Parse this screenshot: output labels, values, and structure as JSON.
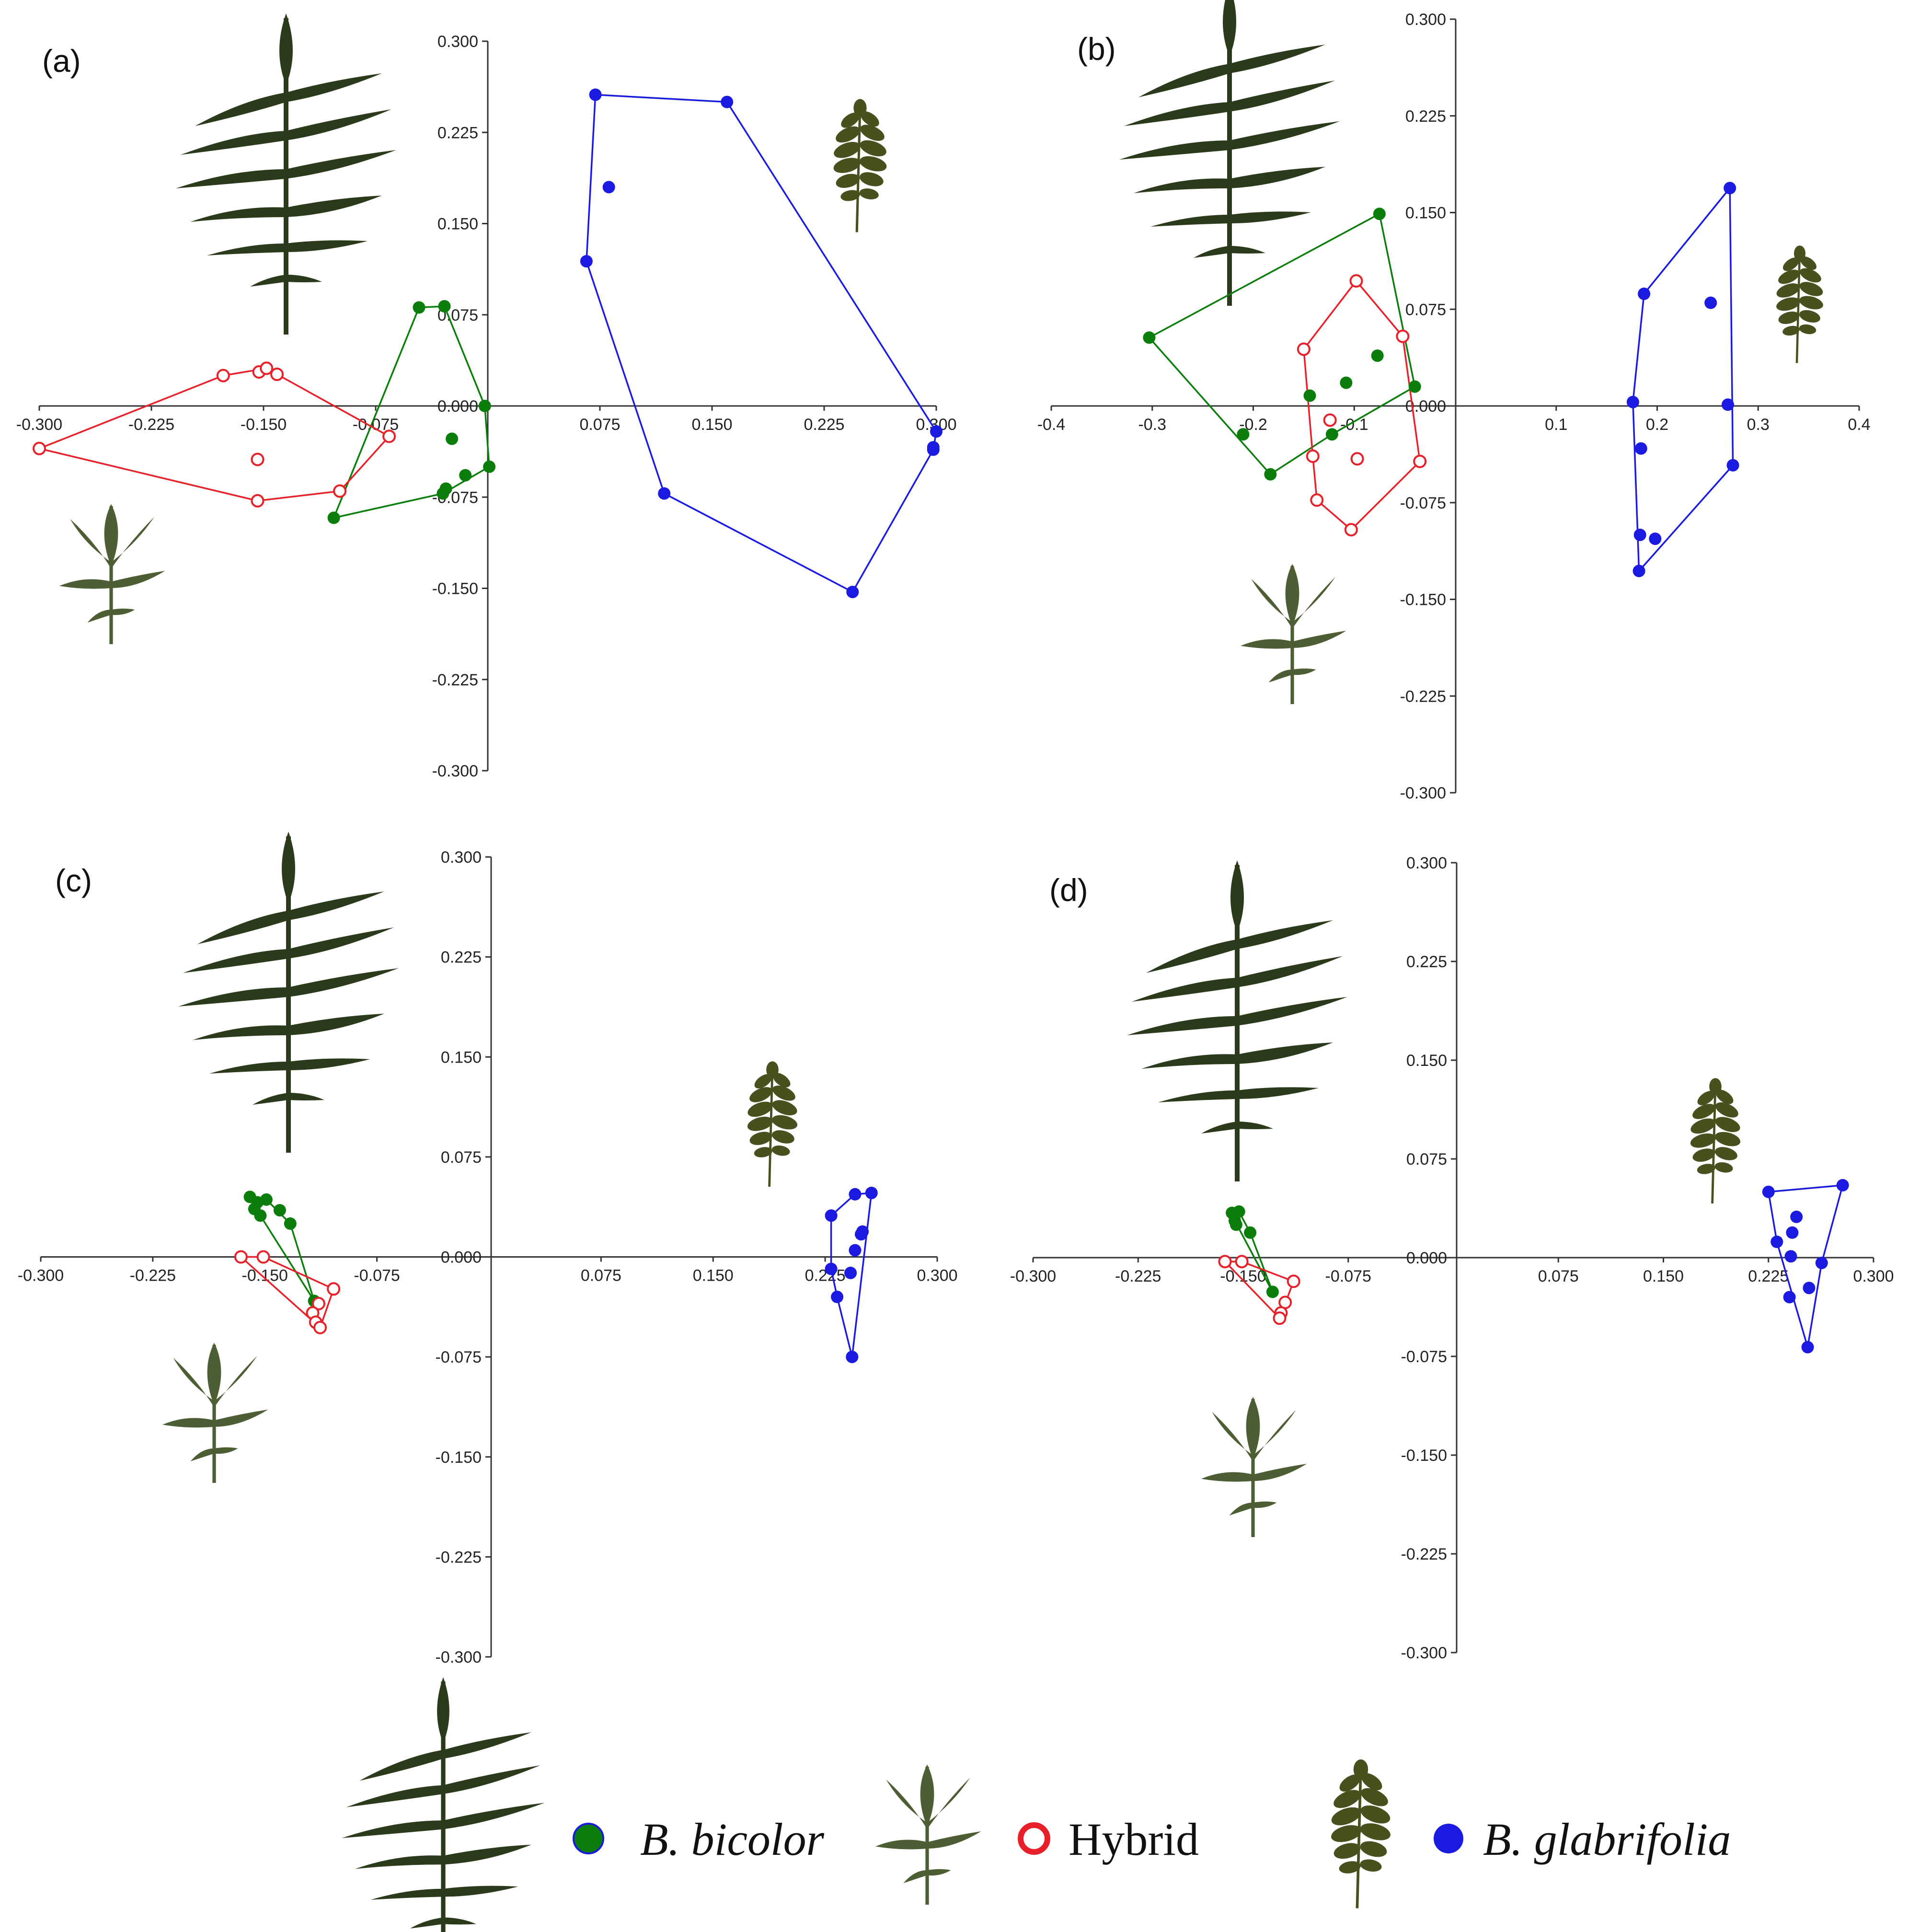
{
  "figure": {
    "colors": {
      "bicolor": "#0a7d0a",
      "hybrid": "#e8202a",
      "glabrifolia": "#1a1ae0",
      "axis": "#333333",
      "leaf_dark": "#2c3a1c",
      "leaf_mid": "#4e5e34",
      "leaf_olive": "#4a4f1e"
    },
    "legend": {
      "bicolor_label": "B. bicolor",
      "hybrid_label": "Hybrid",
      "glabrifolia_label": "B. glabrifolia",
      "bicolor_icon": "filled-circle-green",
      "hybrid_icon": "open-circle-red",
      "glabrifolia_icon": "filled-circle-blue",
      "bicolor_leaf_icon": "pinnate-leaf-icon",
      "hybrid_leaf_icon": "trifoliate-leaf-icon",
      "glabrifolia_leaf_icon": "small-pinnate-leaf-icon"
    }
  },
  "chart_data": [
    {
      "type": "scatter",
      "panel": "(a)",
      "title": "",
      "xlabel": "",
      "ylabel": "",
      "xlim": [
        -0.3,
        0.3
      ],
      "ylim": [
        -0.3,
        0.3
      ],
      "xticks": [
        "-0.300",
        "-0.225",
        "-0.150",
        "-0.075",
        "0.075",
        "0.150",
        "0.225",
        "0.300"
      ],
      "yticks": [
        "0.300",
        "0.225",
        "0.150",
        "0.075",
        "0.000",
        "-0.075",
        "-0.150",
        "-0.225",
        "-0.300"
      ],
      "series": [
        {
          "name": "B. bicolor",
          "marker": "filled",
          "color": "green",
          "points": [
            [
              -0.046,
              0.081
            ],
            [
              -0.029,
              0.082
            ],
            [
              -0.024,
              -0.027
            ],
            [
              -0.015,
              -0.057
            ],
            [
              -0.028,
              -0.068
            ],
            [
              -0.03,
              -0.072
            ],
            [
              -0.002,
              0.0
            ],
            [
              0.001,
              -0.05
            ],
            [
              -0.103,
              -0.092
            ]
          ],
          "hull": [
            [
              -0.046,
              0.081
            ],
            [
              -0.029,
              0.082
            ],
            [
              -0.002,
              0.0
            ],
            [
              0.001,
              -0.05
            ],
            [
              -0.03,
              -0.072
            ],
            [
              -0.103,
              -0.092
            ]
          ]
        },
        {
          "name": "Hybrid",
          "marker": "open",
          "color": "red",
          "points": [
            [
              -0.3,
              -0.035
            ],
            [
              -0.177,
              0.025
            ],
            [
              -0.153,
              0.028
            ],
            [
              -0.148,
              0.031
            ],
            [
              -0.141,
              0.026
            ],
            [
              -0.066,
              -0.025
            ],
            [
              -0.099,
              -0.07
            ],
            [
              -0.154,
              -0.078
            ],
            [
              -0.154,
              -0.044
            ]
          ],
          "hull": [
            [
              -0.3,
              -0.035
            ],
            [
              -0.177,
              0.025
            ],
            [
              -0.148,
              0.031
            ],
            [
              -0.141,
              0.026
            ],
            [
              -0.066,
              -0.025
            ],
            [
              -0.099,
              -0.07
            ],
            [
              -0.154,
              -0.078
            ]
          ]
        },
        {
          "name": "B. glabrifolia",
          "marker": "filled",
          "color": "blue",
          "points": [
            [
              0.072,
              0.256
            ],
            [
              0.081,
              0.18
            ],
            [
              0.066,
              0.119
            ],
            [
              0.16,
              0.25
            ],
            [
              0.118,
              -0.072
            ],
            [
              0.244,
              -0.153
            ],
            [
              0.3,
              -0.021
            ],
            [
              0.298,
              -0.034
            ],
            [
              0.298,
              -0.036
            ]
          ],
          "hull": [
            [
              0.072,
              0.256
            ],
            [
              0.16,
              0.25
            ],
            [
              0.3,
              -0.021
            ],
            [
              0.298,
              -0.036
            ],
            [
              0.244,
              -0.153
            ],
            [
              0.118,
              -0.072
            ],
            [
              0.066,
              0.119
            ]
          ]
        }
      ]
    },
    {
      "type": "scatter",
      "panel": "(b)",
      "title": "",
      "xlabel": "",
      "ylabel": "",
      "xlim": [
        -0.4,
        0.4
      ],
      "ylim": [
        -0.3,
        0.3
      ],
      "xticks": [
        "-0.4",
        "-0.3",
        "-0.2",
        "-0.1",
        "0.1",
        "0.2",
        "0.3",
        "0.4"
      ],
      "yticks": [
        "0.300",
        "0.225",
        "0.150",
        "0.075",
        "0.000",
        "-0.075",
        "-0.150",
        "-0.225",
        "-0.300"
      ],
      "series": [
        {
          "name": "B. bicolor",
          "marker": "filled",
          "color": "green",
          "points": [
            [
              -0.303,
              0.053
            ],
            [
              -0.075,
              0.149
            ],
            [
              -0.04,
              0.015
            ],
            [
              -0.077,
              0.039
            ],
            [
              -0.108,
              0.018
            ],
            [
              -0.144,
              0.008
            ],
            [
              -0.122,
              -0.022
            ],
            [
              -0.183,
              -0.053
            ],
            [
              -0.21,
              -0.022
            ]
          ],
          "hull": [
            [
              -0.303,
              0.053
            ],
            [
              -0.075,
              0.149
            ],
            [
              -0.04,
              0.015
            ],
            [
              -0.122,
              -0.022
            ],
            [
              -0.183,
              -0.053
            ]
          ]
        },
        {
          "name": "Hybrid",
          "marker": "open",
          "color": "red",
          "points": [
            [
              -0.098,
              0.097
            ],
            [
              -0.052,
              0.054
            ],
            [
              -0.15,
              0.044
            ],
            [
              -0.124,
              -0.011
            ],
            [
              -0.141,
              -0.039
            ],
            [
              -0.035,
              -0.043
            ],
            [
              -0.137,
              -0.073
            ],
            [
              -0.103,
              -0.096
            ],
            [
              -0.097,
              -0.041
            ]
          ],
          "hull": [
            [
              -0.098,
              0.097
            ],
            [
              -0.052,
              0.054
            ],
            [
              -0.035,
              -0.043
            ],
            [
              -0.103,
              -0.096
            ],
            [
              -0.137,
              -0.073
            ],
            [
              -0.141,
              -0.039
            ],
            [
              -0.15,
              0.044
            ]
          ]
        },
        {
          "name": "B. glabrifolia",
          "marker": "filled",
          "color": "blue",
          "points": [
            [
              0.272,
              0.169
            ],
            [
              0.187,
              0.087
            ],
            [
              0.253,
              0.08
            ],
            [
              0.176,
              0.003
            ],
            [
              0.27,
              0.001
            ],
            [
              0.184,
              -0.033
            ],
            [
              0.275,
              -0.046
            ],
            [
              0.183,
              -0.1
            ],
            [
              0.198,
              -0.103
            ],
            [
              0.182,
              -0.128
            ]
          ],
          "hull": [
            [
              0.187,
              0.087
            ],
            [
              0.272,
              0.169
            ],
            [
              0.275,
              -0.046
            ],
            [
              0.182,
              -0.128
            ],
            [
              0.176,
              0.003
            ]
          ]
        }
      ]
    },
    {
      "type": "scatter",
      "panel": "(c)",
      "title": "",
      "xlabel": "",
      "ylabel": "",
      "xlim": [
        -0.3,
        0.3
      ],
      "ylim": [
        -0.3,
        0.3
      ],
      "xticks": [
        "-0.300",
        "-0.225",
        "-0.150",
        "-0.075",
        "0.075",
        "0.150",
        "0.225",
        "0.300"
      ],
      "yticks": [
        "0.300",
        "0.225",
        "0.150",
        "0.075",
        "0.000",
        "-0.075",
        "-0.150",
        "-0.225",
        "-0.300"
      ],
      "series": [
        {
          "name": "B. bicolor",
          "marker": "filled",
          "color": "green",
          "points": [
            [
              -0.16,
              0.045
            ],
            [
              -0.155,
              0.041
            ],
            [
              -0.149,
              0.043
            ],
            [
              -0.157,
              0.036
            ],
            [
              -0.153,
              0.031
            ],
            [
              -0.14,
              0.035
            ],
            [
              -0.133,
              0.025
            ],
            [
              -0.117,
              -0.033
            ]
          ],
          "hull": [
            [
              -0.16,
              0.045
            ],
            [
              -0.149,
              0.043
            ],
            [
              -0.133,
              0.025
            ],
            [
              -0.117,
              -0.033
            ],
            [
              -0.153,
              0.031
            ]
          ]
        },
        {
          "name": "Hybrid",
          "marker": "open",
          "color": "red",
          "points": [
            [
              -0.166,
              0.0
            ],
            [
              -0.151,
              0.0
            ],
            [
              -0.104,
              -0.024
            ],
            [
              -0.114,
              -0.035
            ],
            [
              -0.118,
              -0.042
            ],
            [
              -0.116,
              -0.049
            ],
            [
              -0.113,
              -0.053
            ]
          ],
          "hull": [
            [
              -0.166,
              0.0
            ],
            [
              -0.151,
              0.0
            ],
            [
              -0.104,
              -0.024
            ],
            [
              -0.113,
              -0.053
            ]
          ]
        },
        {
          "name": "B. glabrifolia",
          "marker": "filled",
          "color": "blue",
          "points": [
            [
              0.245,
              0.047
            ],
            [
              0.256,
              0.048
            ],
            [
              0.229,
              0.031
            ],
            [
              0.25,
              0.019
            ],
            [
              0.249,
              0.017
            ],
            [
              0.229,
              -0.009
            ],
            [
              0.242,
              -0.012
            ],
            [
              0.245,
              0.005
            ],
            [
              0.233,
              -0.03
            ],
            [
              0.243,
              -0.075
            ]
          ],
          "hull": [
            [
              0.229,
              0.031
            ],
            [
              0.245,
              0.047
            ],
            [
              0.256,
              0.048
            ],
            [
              0.243,
              -0.075
            ],
            [
              0.233,
              -0.03
            ],
            [
              0.229,
              -0.009
            ]
          ]
        }
      ]
    },
    {
      "type": "scatter",
      "panel": "(d)",
      "title": "",
      "xlabel": "",
      "ylabel": "",
      "xlim": [
        -0.3,
        0.3
      ],
      "ylim": [
        -0.3,
        0.3
      ],
      "xticks": [
        "-0.300",
        "-0.225",
        "-0.150",
        "-0.075",
        "0.075",
        "0.150",
        "0.225",
        "0.300"
      ],
      "yticks": [
        "0.300",
        "0.225",
        "0.150",
        "0.075",
        "0.000",
        "-0.075",
        "-0.150",
        "-0.225",
        "-0.300"
      ],
      "series": [
        {
          "name": "B. bicolor",
          "marker": "filled",
          "color": "green",
          "points": [
            [
              -0.158,
              0.034
            ],
            [
              -0.153,
              0.035
            ],
            [
              -0.156,
              0.028
            ],
            [
              -0.155,
              0.025
            ],
            [
              -0.145,
              0.019
            ],
            [
              -0.129,
              -0.026
            ]
          ],
          "hull": [
            [
              -0.158,
              0.034
            ],
            [
              -0.153,
              0.035
            ],
            [
              -0.145,
              0.019
            ],
            [
              -0.129,
              -0.026
            ],
            [
              -0.156,
              0.028
            ]
          ]
        },
        {
          "name": "Hybrid",
          "marker": "open",
          "color": "red",
          "points": [
            [
              -0.163,
              -0.003
            ],
            [
              -0.151,
              -0.003
            ],
            [
              -0.114,
              -0.018
            ],
            [
              -0.12,
              -0.034
            ],
            [
              -0.123,
              -0.042
            ],
            [
              -0.124,
              -0.046
            ]
          ],
          "hull": [
            [
              -0.163,
              -0.003
            ],
            [
              -0.151,
              -0.003
            ],
            [
              -0.114,
              -0.018
            ],
            [
              -0.124,
              -0.046
            ]
          ]
        },
        {
          "name": "B. glabrifolia",
          "marker": "filled",
          "color": "blue",
          "points": [
            [
              0.225,
              0.05
            ],
            [
              0.278,
              0.055
            ],
            [
              0.245,
              0.031
            ],
            [
              0.242,
              0.019
            ],
            [
              0.231,
              0.012
            ],
            [
              0.241,
              0.001
            ],
            [
              0.263,
              -0.004
            ],
            [
              0.254,
              -0.023
            ],
            [
              0.24,
              -0.03
            ],
            [
              0.253,
              -0.068
            ]
          ],
          "hull": [
            [
              0.225,
              0.05
            ],
            [
              0.278,
              0.055
            ],
            [
              0.263,
              -0.004
            ],
            [
              0.253,
              -0.068
            ],
            [
              0.231,
              0.012
            ]
          ]
        }
      ]
    }
  ]
}
